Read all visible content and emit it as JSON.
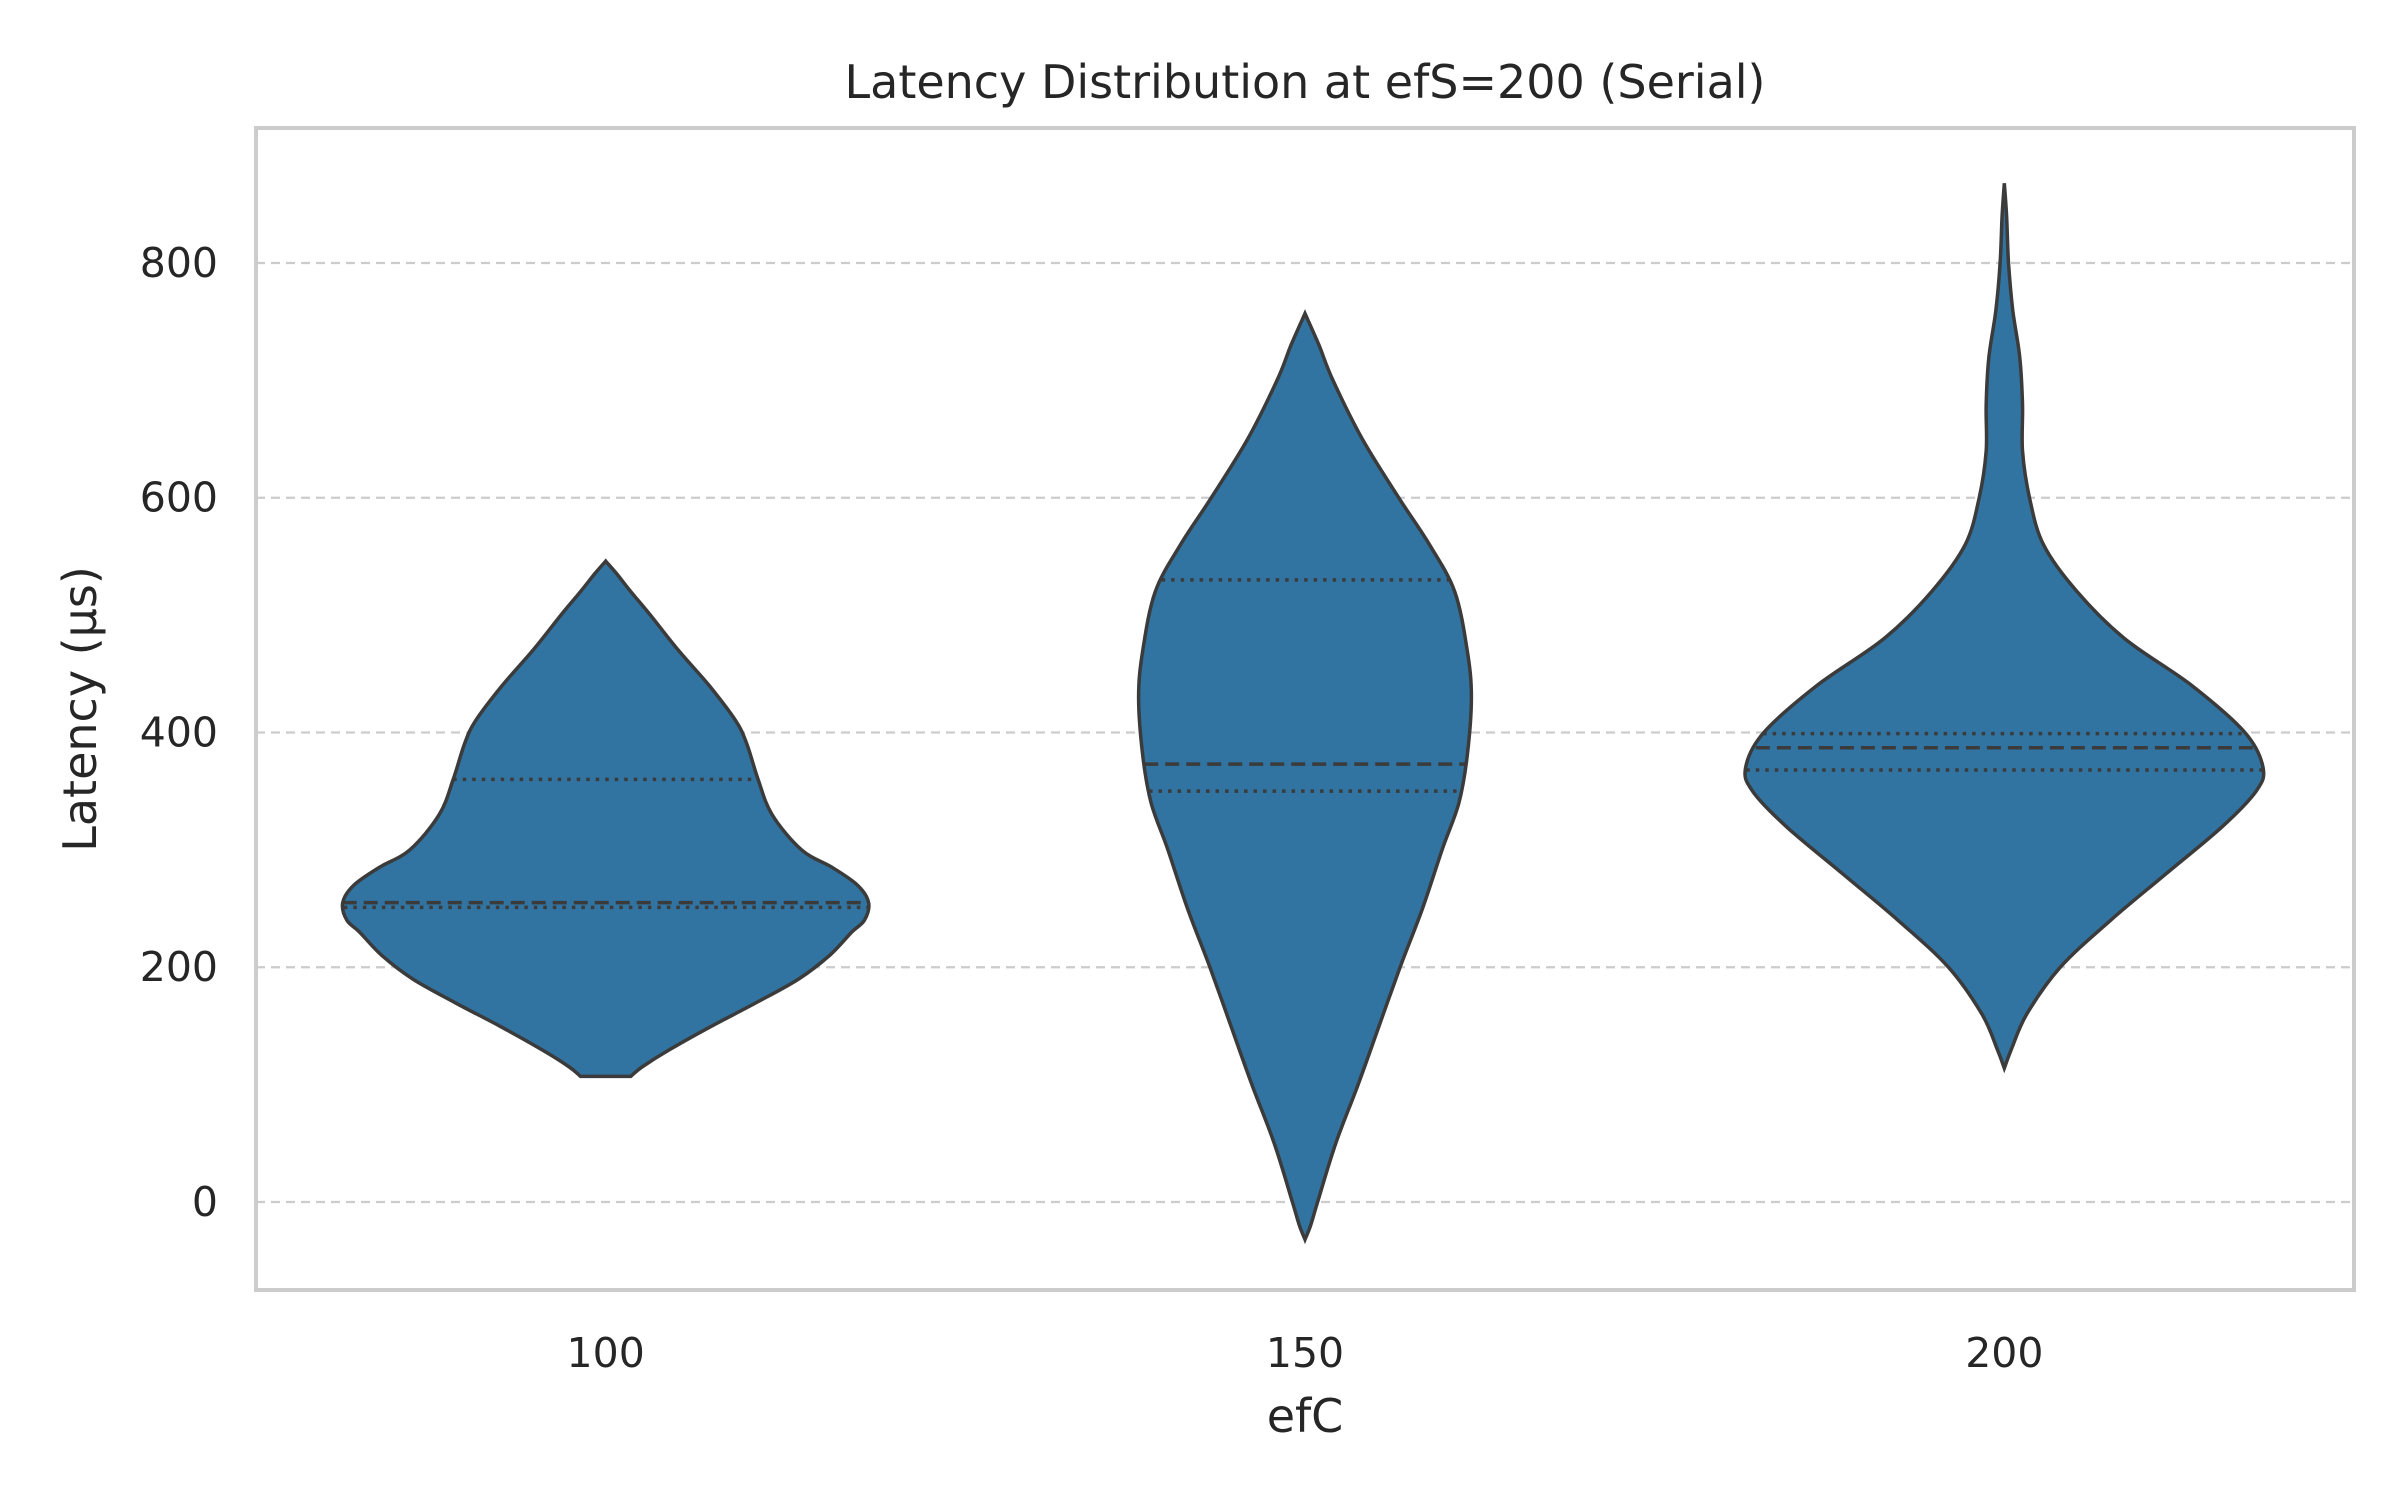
{
  "chart_data": {
    "type": "violin",
    "title": "Latency Distribution at efS=200 (Serial)",
    "xlabel": "efC",
    "ylabel": "Latency (μs)",
    "ylim": [
      -75,
      915
    ],
    "yticks": [
      0,
      200,
      400,
      600,
      800
    ],
    "grid": "y-dashed",
    "color": "#3274a1",
    "categories": [
      "100",
      "150",
      "200"
    ],
    "violins": [
      {
        "category": "100",
        "min": 107,
        "max": 546,
        "q1": 251,
        "median": 255,
        "q3": 360,
        "profile": [
          [
            107,
            0.09
          ],
          [
            115,
            0.13
          ],
          [
            130,
            0.23
          ],
          [
            150,
            0.38
          ],
          [
            170,
            0.54
          ],
          [
            190,
            0.69
          ],
          [
            210,
            0.8
          ],
          [
            230,
            0.88
          ],
          [
            240,
            0.925
          ],
          [
            255,
            0.94
          ],
          [
            270,
            0.9
          ],
          [
            285,
            0.81
          ],
          [
            300,
            0.7
          ],
          [
            330,
            0.595
          ],
          [
            360,
            0.545
          ],
          [
            390,
            0.505
          ],
          [
            410,
            0.465
          ],
          [
            440,
            0.37
          ],
          [
            470,
            0.26
          ],
          [
            500,
            0.16
          ],
          [
            520,
            0.09
          ],
          [
            535,
            0.04
          ],
          [
            546,
            0.0
          ]
        ]
      },
      {
        "category": "150",
        "min": -32,
        "max": 757,
        "q1": 350,
        "median": 373,
        "q3": 530,
        "profile": [
          [
            -32,
            0.0
          ],
          [
            -20,
            0.02
          ],
          [
            0,
            0.045
          ],
          [
            50,
            0.11
          ],
          [
            100,
            0.19
          ],
          [
            150,
            0.265
          ],
          [
            200,
            0.34
          ],
          [
            250,
            0.42
          ],
          [
            300,
            0.49
          ],
          [
            340,
            0.55
          ],
          [
            380,
            0.58
          ],
          [
            430,
            0.595
          ],
          [
            470,
            0.58
          ],
          [
            520,
            0.535
          ],
          [
            560,
            0.445
          ],
          [
            600,
            0.335
          ],
          [
            650,
            0.205
          ],
          [
            700,
            0.1
          ],
          [
            730,
            0.05
          ],
          [
            757,
            0.0
          ]
        ]
      },
      {
        "category": "200",
        "min": 114,
        "max": 868,
        "q1": 368,
        "median": 387,
        "q3": 399,
        "profile": [
          [
            114,
            0.0
          ],
          [
            130,
            0.025
          ],
          [
            160,
            0.08
          ],
          [
            200,
            0.2
          ],
          [
            240,
            0.38
          ],
          [
            280,
            0.58
          ],
          [
            320,
            0.78
          ],
          [
            350,
            0.9
          ],
          [
            370,
            0.925
          ],
          [
            400,
            0.86
          ],
          [
            440,
            0.67
          ],
          [
            480,
            0.43
          ],
          [
            520,
            0.26
          ],
          [
            560,
            0.14
          ],
          [
            600,
            0.09
          ],
          [
            640,
            0.065
          ],
          [
            680,
            0.065
          ],
          [
            720,
            0.055
          ],
          [
            760,
            0.03
          ],
          [
            800,
            0.015
          ],
          [
            840,
            0.008
          ],
          [
            868,
            0.0
          ]
        ]
      }
    ]
  }
}
